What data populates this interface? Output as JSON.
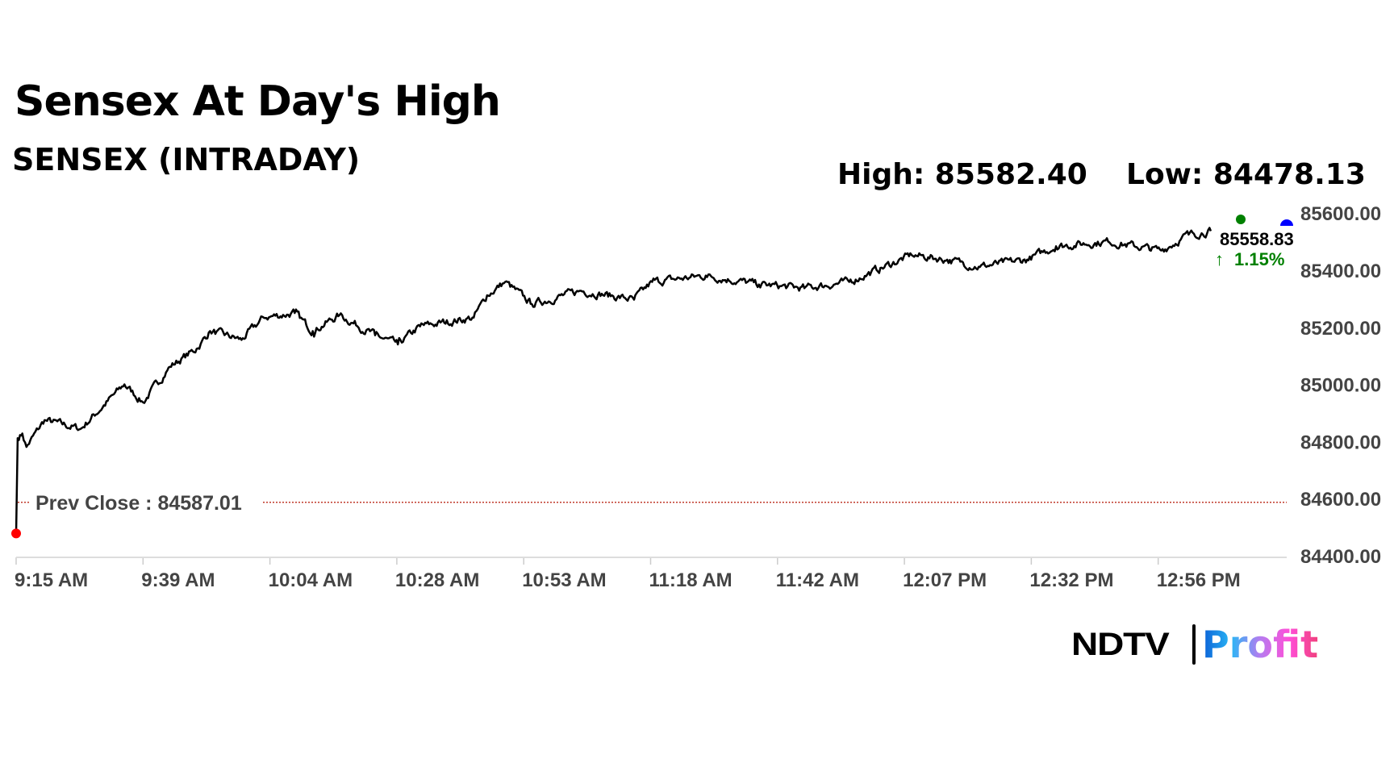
{
  "chart_data": {
    "type": "line",
    "title": "Sensex At Day's High",
    "subtitle": "SENSEX (INTRADAY)",
    "high_label": "High: 85582.40",
    "low_label": "Low: 84478.13",
    "last_value_label": "85558.83",
    "change_label": "1.15%",
    "change_direction": "up",
    "prev_close_label": "Prev Close : 84587.01",
    "prev_close": 84587.01,
    "ylim": [
      84400,
      85600
    ],
    "yticks": [
      "85600.00",
      "85400.00",
      "85200.00",
      "85000.00",
      "84800.00",
      "84600.00",
      "84400.00"
    ],
    "ytick_values": [
      85600,
      85400,
      85200,
      85000,
      84800,
      84600,
      84400
    ],
    "xticks": [
      "9:15 AM",
      "9:39 AM",
      "10:04 AM",
      "10:28 AM",
      "10:53 AM",
      "11:18 AM",
      "11:42 AM",
      "12:07 PM",
      "12:32 PM",
      "12:56 PM"
    ],
    "xtick_minutes": [
      0,
      24.6,
      49.2,
      73.8,
      98.4,
      123,
      147.6,
      172.2,
      196.8,
      221.4
    ],
    "xlim_minutes": [
      0,
      248
    ],
    "series": [
      {
        "name": "SENSEX",
        "x_minutes": [
          0,
          0.3,
          1.2,
          2,
          5.5,
          12.5,
          21,
          24.6,
          29.8,
          35,
          37.6,
          43.7,
          48,
          54,
          57.5,
          62.7,
          69.6,
          74,
          78.3,
          88.7,
          91.3,
          94.8,
          100,
          109.5,
          119.8,
          123.3,
          133.7,
          144,
          152.8,
          161.5,
          173.6,
          180.5,
          186.6,
          196,
          201.6,
          211.7,
          222,
          227.3,
          231.6
        ],
        "values": [
          84478,
          84812,
          84828,
          84781,
          84875,
          84844,
          85000,
          84937,
          85062,
          85125,
          85187,
          85156,
          85234,
          85250,
          85187,
          85243,
          85172,
          85140,
          85203,
          85234,
          85312,
          85359,
          85281,
          85328,
          85297,
          85359,
          85381,
          85350,
          85337,
          85359,
          85453,
          85437,
          85412,
          85437,
          85484,
          85500,
          85469,
          85525,
          85537
        ]
      }
    ],
    "colors": {
      "line": "#000000",
      "prev_close": "#c0392b",
      "open_dot": "#ff0000",
      "high_dot": "#008000",
      "low_dot": "#0000ff",
      "up": "#008000",
      "axis": "#dddddd"
    }
  },
  "logo": {
    "brand": "NDTV",
    "product": "Profit"
  }
}
